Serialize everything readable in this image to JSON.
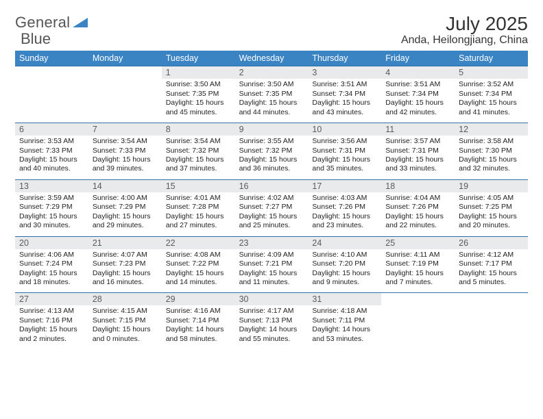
{
  "brand": {
    "name1": "General",
    "name2": "Blue",
    "color": "#3b84c4"
  },
  "title": "July 2025",
  "location": "Anda, Heilongjiang, China",
  "colors": {
    "header_bg": "#3b84c4",
    "header_text": "#ffffff",
    "daynum_bg": "#e9eaec",
    "rule": "#2f6fa8"
  },
  "daynames": [
    "Sunday",
    "Monday",
    "Tuesday",
    "Wednesday",
    "Thursday",
    "Friday",
    "Saturday"
  ],
  "weeks": [
    [
      null,
      null,
      {
        "n": "1",
        "sr": "Sunrise: 3:50 AM",
        "ss": "Sunset: 7:35 PM",
        "d1": "Daylight: 15 hours",
        "d2": "and 45 minutes."
      },
      {
        "n": "2",
        "sr": "Sunrise: 3:50 AM",
        "ss": "Sunset: 7:35 PM",
        "d1": "Daylight: 15 hours",
        "d2": "and 44 minutes."
      },
      {
        "n": "3",
        "sr": "Sunrise: 3:51 AM",
        "ss": "Sunset: 7:34 PM",
        "d1": "Daylight: 15 hours",
        "d2": "and 43 minutes."
      },
      {
        "n": "4",
        "sr": "Sunrise: 3:51 AM",
        "ss": "Sunset: 7:34 PM",
        "d1": "Daylight: 15 hours",
        "d2": "and 42 minutes."
      },
      {
        "n": "5",
        "sr": "Sunrise: 3:52 AM",
        "ss": "Sunset: 7:34 PM",
        "d1": "Daylight: 15 hours",
        "d2": "and 41 minutes."
      }
    ],
    [
      {
        "n": "6",
        "sr": "Sunrise: 3:53 AM",
        "ss": "Sunset: 7:33 PM",
        "d1": "Daylight: 15 hours",
        "d2": "and 40 minutes."
      },
      {
        "n": "7",
        "sr": "Sunrise: 3:54 AM",
        "ss": "Sunset: 7:33 PM",
        "d1": "Daylight: 15 hours",
        "d2": "and 39 minutes."
      },
      {
        "n": "8",
        "sr": "Sunrise: 3:54 AM",
        "ss": "Sunset: 7:32 PM",
        "d1": "Daylight: 15 hours",
        "d2": "and 37 minutes."
      },
      {
        "n": "9",
        "sr": "Sunrise: 3:55 AM",
        "ss": "Sunset: 7:32 PM",
        "d1": "Daylight: 15 hours",
        "d2": "and 36 minutes."
      },
      {
        "n": "10",
        "sr": "Sunrise: 3:56 AM",
        "ss": "Sunset: 7:31 PM",
        "d1": "Daylight: 15 hours",
        "d2": "and 35 minutes."
      },
      {
        "n": "11",
        "sr": "Sunrise: 3:57 AM",
        "ss": "Sunset: 7:31 PM",
        "d1": "Daylight: 15 hours",
        "d2": "and 33 minutes."
      },
      {
        "n": "12",
        "sr": "Sunrise: 3:58 AM",
        "ss": "Sunset: 7:30 PM",
        "d1": "Daylight: 15 hours",
        "d2": "and 32 minutes."
      }
    ],
    [
      {
        "n": "13",
        "sr": "Sunrise: 3:59 AM",
        "ss": "Sunset: 7:29 PM",
        "d1": "Daylight: 15 hours",
        "d2": "and 30 minutes."
      },
      {
        "n": "14",
        "sr": "Sunrise: 4:00 AM",
        "ss": "Sunset: 7:29 PM",
        "d1": "Daylight: 15 hours",
        "d2": "and 29 minutes."
      },
      {
        "n": "15",
        "sr": "Sunrise: 4:01 AM",
        "ss": "Sunset: 7:28 PM",
        "d1": "Daylight: 15 hours",
        "d2": "and 27 minutes."
      },
      {
        "n": "16",
        "sr": "Sunrise: 4:02 AM",
        "ss": "Sunset: 7:27 PM",
        "d1": "Daylight: 15 hours",
        "d2": "and 25 minutes."
      },
      {
        "n": "17",
        "sr": "Sunrise: 4:03 AM",
        "ss": "Sunset: 7:26 PM",
        "d1": "Daylight: 15 hours",
        "d2": "and 23 minutes."
      },
      {
        "n": "18",
        "sr": "Sunrise: 4:04 AM",
        "ss": "Sunset: 7:26 PM",
        "d1": "Daylight: 15 hours",
        "d2": "and 22 minutes."
      },
      {
        "n": "19",
        "sr": "Sunrise: 4:05 AM",
        "ss": "Sunset: 7:25 PM",
        "d1": "Daylight: 15 hours",
        "d2": "and 20 minutes."
      }
    ],
    [
      {
        "n": "20",
        "sr": "Sunrise: 4:06 AM",
        "ss": "Sunset: 7:24 PM",
        "d1": "Daylight: 15 hours",
        "d2": "and 18 minutes."
      },
      {
        "n": "21",
        "sr": "Sunrise: 4:07 AM",
        "ss": "Sunset: 7:23 PM",
        "d1": "Daylight: 15 hours",
        "d2": "and 16 minutes."
      },
      {
        "n": "22",
        "sr": "Sunrise: 4:08 AM",
        "ss": "Sunset: 7:22 PM",
        "d1": "Daylight: 15 hours",
        "d2": "and 14 minutes."
      },
      {
        "n": "23",
        "sr": "Sunrise: 4:09 AM",
        "ss": "Sunset: 7:21 PM",
        "d1": "Daylight: 15 hours",
        "d2": "and 11 minutes."
      },
      {
        "n": "24",
        "sr": "Sunrise: 4:10 AM",
        "ss": "Sunset: 7:20 PM",
        "d1": "Daylight: 15 hours",
        "d2": "and 9 minutes."
      },
      {
        "n": "25",
        "sr": "Sunrise: 4:11 AM",
        "ss": "Sunset: 7:19 PM",
        "d1": "Daylight: 15 hours",
        "d2": "and 7 minutes."
      },
      {
        "n": "26",
        "sr": "Sunrise: 4:12 AM",
        "ss": "Sunset: 7:17 PM",
        "d1": "Daylight: 15 hours",
        "d2": "and 5 minutes."
      }
    ],
    [
      {
        "n": "27",
        "sr": "Sunrise: 4:13 AM",
        "ss": "Sunset: 7:16 PM",
        "d1": "Daylight: 15 hours",
        "d2": "and 2 minutes."
      },
      {
        "n": "28",
        "sr": "Sunrise: 4:15 AM",
        "ss": "Sunset: 7:15 PM",
        "d1": "Daylight: 15 hours",
        "d2": "and 0 minutes."
      },
      {
        "n": "29",
        "sr": "Sunrise: 4:16 AM",
        "ss": "Sunset: 7:14 PM",
        "d1": "Daylight: 14 hours",
        "d2": "and 58 minutes."
      },
      {
        "n": "30",
        "sr": "Sunrise: 4:17 AM",
        "ss": "Sunset: 7:13 PM",
        "d1": "Daylight: 14 hours",
        "d2": "and 55 minutes."
      },
      {
        "n": "31",
        "sr": "Sunrise: 4:18 AM",
        "ss": "Sunset: 7:11 PM",
        "d1": "Daylight: 14 hours",
        "d2": "and 53 minutes."
      },
      null,
      null
    ]
  ]
}
